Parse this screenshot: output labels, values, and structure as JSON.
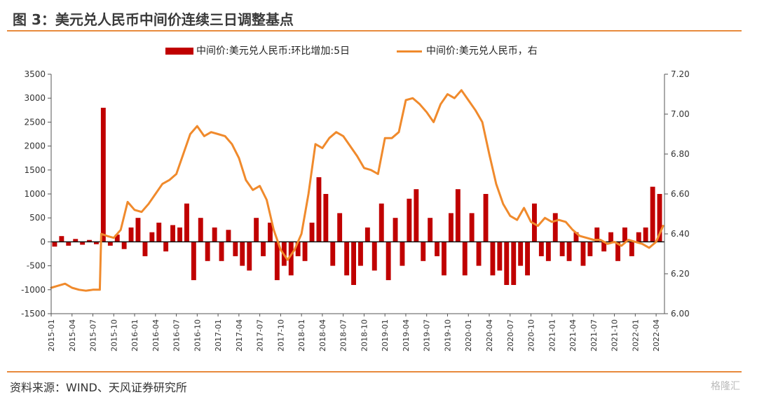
{
  "title": "图 3：美元兑人民币中间价连续三日调整基点",
  "source": "资料来源：WIND、天风证券研究所",
  "watermark": "格隆汇",
  "chart_data": {
    "type": "bar+line",
    "legend": [
      {
        "label": "中间价:美元兑人民币:环比增加:5日",
        "type": "bar",
        "color": "#c00000",
        "axis": "left"
      },
      {
        "label": "中间价:美元兑人民币，右",
        "type": "line",
        "color": "#f08a2c",
        "axis": "right"
      }
    ],
    "left_axis": {
      "min": -1500,
      "max": 3500,
      "ticks": [
        3500,
        3000,
        2500,
        2000,
        1500,
        1000,
        500,
        0,
        -500,
        -1000,
        -1500
      ]
    },
    "right_axis": {
      "min": 6.0,
      "max": 7.2,
      "ticks": [
        "7.20",
        "7.00",
        "6.80",
        "6.60",
        "6.40",
        "6.20",
        "6.00"
      ]
    },
    "x_ticks": [
      "2015-01",
      "2015-04",
      "2015-07",
      "2015-10",
      "2016-01",
      "2016-04",
      "2016-07",
      "2016-10",
      "2017-01",
      "2017-04",
      "2017-07",
      "2017-10",
      "2018-01",
      "2018-04",
      "2018-07",
      "2018-10",
      "2019-01",
      "2019-04",
      "2019-07",
      "2019-10",
      "2020-01",
      "2020-04",
      "2020-07",
      "2020-10",
      "2021-01",
      "2021-04",
      "2021-07",
      "2021-10",
      "2022-01",
      "2022-04"
    ],
    "x_range": [
      0,
      88.2
    ],
    "line_series": {
      "name": "中间价:美元兑人民币",
      "x": [
        0,
        1,
        2,
        3,
        4,
        5,
        6,
        7,
        7.2,
        8,
        9,
        10,
        11,
        12,
        13,
        14,
        15,
        16,
        17,
        18,
        19,
        20,
        21,
        22,
        23,
        24,
        25,
        26,
        27,
        28,
        29,
        30,
        31,
        32,
        33,
        34,
        35,
        36,
        37,
        38,
        39,
        40,
        41,
        42,
        43,
        44,
        45,
        46,
        47,
        48,
        49,
        50,
        51,
        52,
        53,
        54,
        55,
        56,
        57,
        58,
        59,
        60,
        61,
        62,
        63,
        64,
        65,
        66,
        67,
        68,
        69,
        70,
        71,
        72,
        73,
        74,
        75,
        76,
        77,
        78,
        79,
        80,
        81,
        82,
        83,
        84,
        85,
        86,
        87,
        88
      ],
      "y": [
        6.13,
        6.14,
        6.15,
        6.13,
        6.12,
        6.115,
        6.12,
        6.12,
        6.4,
        6.39,
        6.38,
        6.42,
        6.56,
        6.52,
        6.51,
        6.55,
        6.6,
        6.65,
        6.67,
        6.7,
        6.8,
        6.9,
        6.94,
        6.89,
        6.91,
        6.9,
        6.89,
        6.85,
        6.78,
        6.67,
        6.62,
        6.64,
        6.57,
        6.42,
        6.32,
        6.27,
        6.32,
        6.4,
        6.6,
        6.85,
        6.83,
        6.88,
        6.91,
        6.89,
        6.84,
        6.79,
        6.73,
        6.72,
        6.7,
        6.88,
        6.88,
        6.91,
        7.07,
        7.08,
        7.05,
        7.01,
        6.96,
        7.05,
        7.1,
        7.08,
        7.12,
        7.07,
        7.02,
        6.96,
        6.8,
        6.65,
        6.55,
        6.49,
        6.47,
        6.53,
        6.46,
        6.44,
        6.48,
        6.46,
        6.47,
        6.46,
        6.42,
        6.39,
        6.38,
        6.37,
        6.37,
        6.35,
        6.36,
        6.34,
        6.37,
        6.36,
        6.35,
        6.33,
        6.36,
        6.44
      ]
    },
    "bar_series": {
      "name": "中间价:美元兑人民币:环比增加:5日",
      "x": [
        0.5,
        1.5,
        2.5,
        3.5,
        4.5,
        5.5,
        6.5,
        7.5,
        8.5,
        9.5,
        10.5,
        11.5,
        12.5,
        13.5,
        14.5,
        15.5,
        16.5,
        17.5,
        18.5,
        19.5,
        20.5,
        21.5,
        22.5,
        23.5,
        24.5,
        25.5,
        26.5,
        27.5,
        28.5,
        29.5,
        30.5,
        31.5,
        32.5,
        33.5,
        34.5,
        35.5,
        36.5,
        37.5,
        38.5,
        39.5,
        40.5,
        41.5,
        42.5,
        43.5,
        44.5,
        45.5,
        46.5,
        47.5,
        48.5,
        49.5,
        50.5,
        51.5,
        52.5,
        53.5,
        54.5,
        55.5,
        56.5,
        57.5,
        58.5,
        59.5,
        60.5,
        61.5,
        62.5,
        63.5,
        64.5,
        65.5,
        66.5,
        67.5,
        68.5,
        69.5,
        70.5,
        71.5,
        72.5,
        73.5,
        74.5,
        75.5,
        76.5,
        77.5,
        78.5,
        79.5,
        80.5,
        81.5,
        82.5,
        83.5,
        84.5,
        85.5,
        86.5,
        87.5
      ],
      "values": [
        -100,
        120,
        -80,
        60,
        -60,
        40,
        -50,
        2800,
        -80,
        150,
        -150,
        300,
        500,
        -300,
        200,
        400,
        -200,
        350,
        300,
        800,
        -800,
        500,
        -400,
        300,
        -400,
        250,
        -300,
        -500,
        -600,
        500,
        -300,
        400,
        -800,
        -500,
        -700,
        -300,
        -400,
        400,
        1350,
        1000,
        -500,
        600,
        -700,
        -900,
        -500,
        300,
        -600,
        800,
        -800,
        500,
        -500,
        900,
        1100,
        -400,
        500,
        -300,
        -700,
        600,
        1100,
        -700,
        600,
        -500,
        1000,
        -700,
        -600,
        -900,
        -900,
        -500,
        -700,
        800,
        -300,
        -400,
        600,
        -300,
        -400,
        200,
        -500,
        -300,
        300,
        -200,
        200,
        -400,
        300,
        -300,
        200,
        300,
        1150,
        1000
      ]
    }
  }
}
